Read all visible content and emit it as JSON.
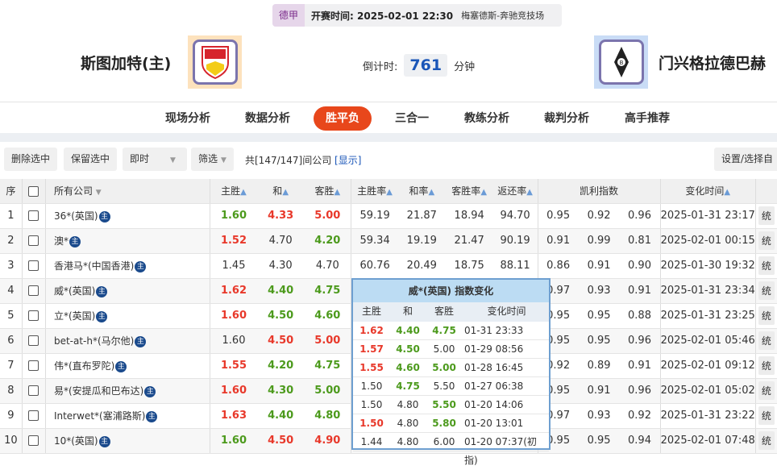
{
  "match": {
    "league": "德甲",
    "kickoff": "开赛时间: 2025-02-01 22:30",
    "venue": "梅塞德斯-奔驰竞技场",
    "home": "斯图加特(主)",
    "away": "门兴格拉德巴赫",
    "countdown_label": "倒计时:",
    "countdown": "761",
    "countdown_unit": "分钟"
  },
  "nav": [
    "现场分析",
    "数据分析",
    "胜平负",
    "三合一",
    "教练分析",
    "裁判分析",
    "高手推荐"
  ],
  "nav_active": 2,
  "toolbar": {
    "delete": "删除选中",
    "keep": "保留选中",
    "mode": "即时",
    "filter": "筛选",
    "count_text": "共[147/147]间公司",
    "show": "[显示]",
    "settings": "设置/选择自定"
  },
  "table": {
    "headers": {
      "idx": "序",
      "company": "所有公司",
      "home": "主胜",
      "draw": "和",
      "away": "客胜",
      "home_rate": "主胜率",
      "draw_rate": "和率",
      "away_rate": "客胜率",
      "return_rate": "返还率",
      "kelly": "凯利指数",
      "time": "变化时间"
    },
    "action_label": "统",
    "badge": "主",
    "rows": [
      {
        "idx": "1",
        "company": "36*(英国)",
        "odds": [
          [
            "1.60",
            "green"
          ],
          [
            "4.33",
            "red"
          ],
          [
            "5.00",
            "red"
          ]
        ],
        "rates": [
          "59.19",
          "21.87",
          "18.94",
          "94.70"
        ],
        "kelly": [
          "0.95",
          "0.92",
          "0.96"
        ],
        "time": "2025-01-31 23:17"
      },
      {
        "idx": "2",
        "company": "澳*",
        "odds": [
          [
            "1.52",
            "red"
          ],
          [
            "4.70",
            ""
          ],
          [
            "4.20",
            "green"
          ]
        ],
        "rates": [
          "59.34",
          "19.19",
          "21.47",
          "90.19"
        ],
        "kelly": [
          "0.91",
          "0.99",
          "0.81"
        ],
        "time": "2025-02-01 00:15"
      },
      {
        "idx": "3",
        "company": "香港马*(中国香港)",
        "odds": [
          [
            "1.45",
            ""
          ],
          [
            "4.30",
            ""
          ],
          [
            "4.70",
            ""
          ]
        ],
        "rates": [
          "60.76",
          "20.49",
          "18.75",
          "88.11"
        ],
        "kelly": [
          "0.86",
          "0.91",
          "0.90"
        ],
        "time": "2025-01-30 19:32"
      },
      {
        "idx": "4",
        "company": "威*(英国)",
        "odds": [
          [
            "1.62",
            "red"
          ],
          [
            "4.40",
            "green"
          ],
          [
            "4.75",
            "green"
          ]
        ],
        "rates": [
          "",
          "",
          "",
          ""
        ],
        "kelly": [
          "0.97",
          "0.93",
          "0.91"
        ],
        "time": "2025-01-31 23:34"
      },
      {
        "idx": "5",
        "company": "立*(英国)",
        "odds": [
          [
            "1.60",
            "red"
          ],
          [
            "4.50",
            "green"
          ],
          [
            "4.60",
            "green"
          ]
        ],
        "rates": [
          "",
          "",
          "",
          ""
        ],
        "kelly": [
          "0.95",
          "0.95",
          "0.88"
        ],
        "time": "2025-01-31 23:25"
      },
      {
        "idx": "6",
        "company": "bet-at-h*(马尔他)",
        "odds": [
          [
            "1.60",
            ""
          ],
          [
            "4.50",
            "red"
          ],
          [
            "5.00",
            "red"
          ]
        ],
        "rates": [
          "",
          "",
          "",
          ""
        ],
        "kelly": [
          "0.95",
          "0.95",
          "0.96"
        ],
        "time": "2025-02-01 05:46"
      },
      {
        "idx": "7",
        "company": "伟*(直布罗陀)",
        "odds": [
          [
            "1.55",
            "red"
          ],
          [
            "4.20",
            "green"
          ],
          [
            "4.75",
            "green"
          ]
        ],
        "rates": [
          "",
          "",
          "",
          ""
        ],
        "kelly": [
          "0.92",
          "0.89",
          "0.91"
        ],
        "time": "2025-02-01 09:12"
      },
      {
        "idx": "8",
        "company": "易*(安提瓜和巴布达)",
        "odds": [
          [
            "1.60",
            "red"
          ],
          [
            "4.30",
            "green"
          ],
          [
            "5.00",
            "green"
          ]
        ],
        "rates": [
          "",
          "",
          "",
          ""
        ],
        "kelly": [
          "0.95",
          "0.91",
          "0.96"
        ],
        "time": "2025-02-01 05:02"
      },
      {
        "idx": "9",
        "company": "Interwet*(塞浦路斯)",
        "odds": [
          [
            "1.63",
            "red"
          ],
          [
            "4.40",
            "green"
          ],
          [
            "4.80",
            "green"
          ]
        ],
        "rates": [
          "",
          "",
          "",
          ""
        ],
        "kelly": [
          "0.97",
          "0.93",
          "0.92"
        ],
        "time": "2025-01-31 23:22"
      },
      {
        "idx": "10",
        "company": "10*(英国)",
        "odds": [
          [
            "1.60",
            "green"
          ],
          [
            "4.50",
            "red"
          ],
          [
            "4.90",
            "red"
          ]
        ],
        "rates": [
          "",
          "",
          "",
          ""
        ],
        "kelly": [
          "0.95",
          "0.95",
          "0.94"
        ],
        "time": "2025-02-01 07:48"
      }
    ]
  },
  "popup": {
    "title": "威*(英国) 指数变化",
    "headers": [
      "主胜",
      "和",
      "客胜",
      "变化时间"
    ],
    "rows": [
      [
        [
          "1.62",
          "red"
        ],
        [
          "4.40",
          "green"
        ],
        [
          "4.75",
          "green"
        ],
        "01-31 23:33"
      ],
      [
        [
          "1.57",
          "red"
        ],
        [
          "4.50",
          "green"
        ],
        [
          "5.00",
          ""
        ],
        "01-29 08:56"
      ],
      [
        [
          "1.55",
          "red"
        ],
        [
          "4.60",
          "green"
        ],
        [
          "5.00",
          "green"
        ],
        "01-28 16:45"
      ],
      [
        [
          "1.50",
          ""
        ],
        [
          "4.75",
          "green"
        ],
        [
          "5.50",
          ""
        ],
        "01-27 06:38"
      ],
      [
        [
          "1.50",
          ""
        ],
        [
          "4.80",
          ""
        ],
        [
          "5.50",
          "green"
        ],
        "01-20 14:06"
      ],
      [
        [
          "1.50",
          "red"
        ],
        [
          "4.80",
          ""
        ],
        [
          "5.80",
          "green"
        ],
        "01-20 13:01"
      ],
      [
        [
          "1.44",
          ""
        ],
        [
          "4.80",
          ""
        ],
        [
          "6.00",
          ""
        ],
        "01-20 07:37(初指)"
      ]
    ]
  },
  "colors": {
    "red": "#e8382a",
    "green": "#4c9a1c",
    "accent": "#e8471b",
    "link": "#1a56b8"
  }
}
